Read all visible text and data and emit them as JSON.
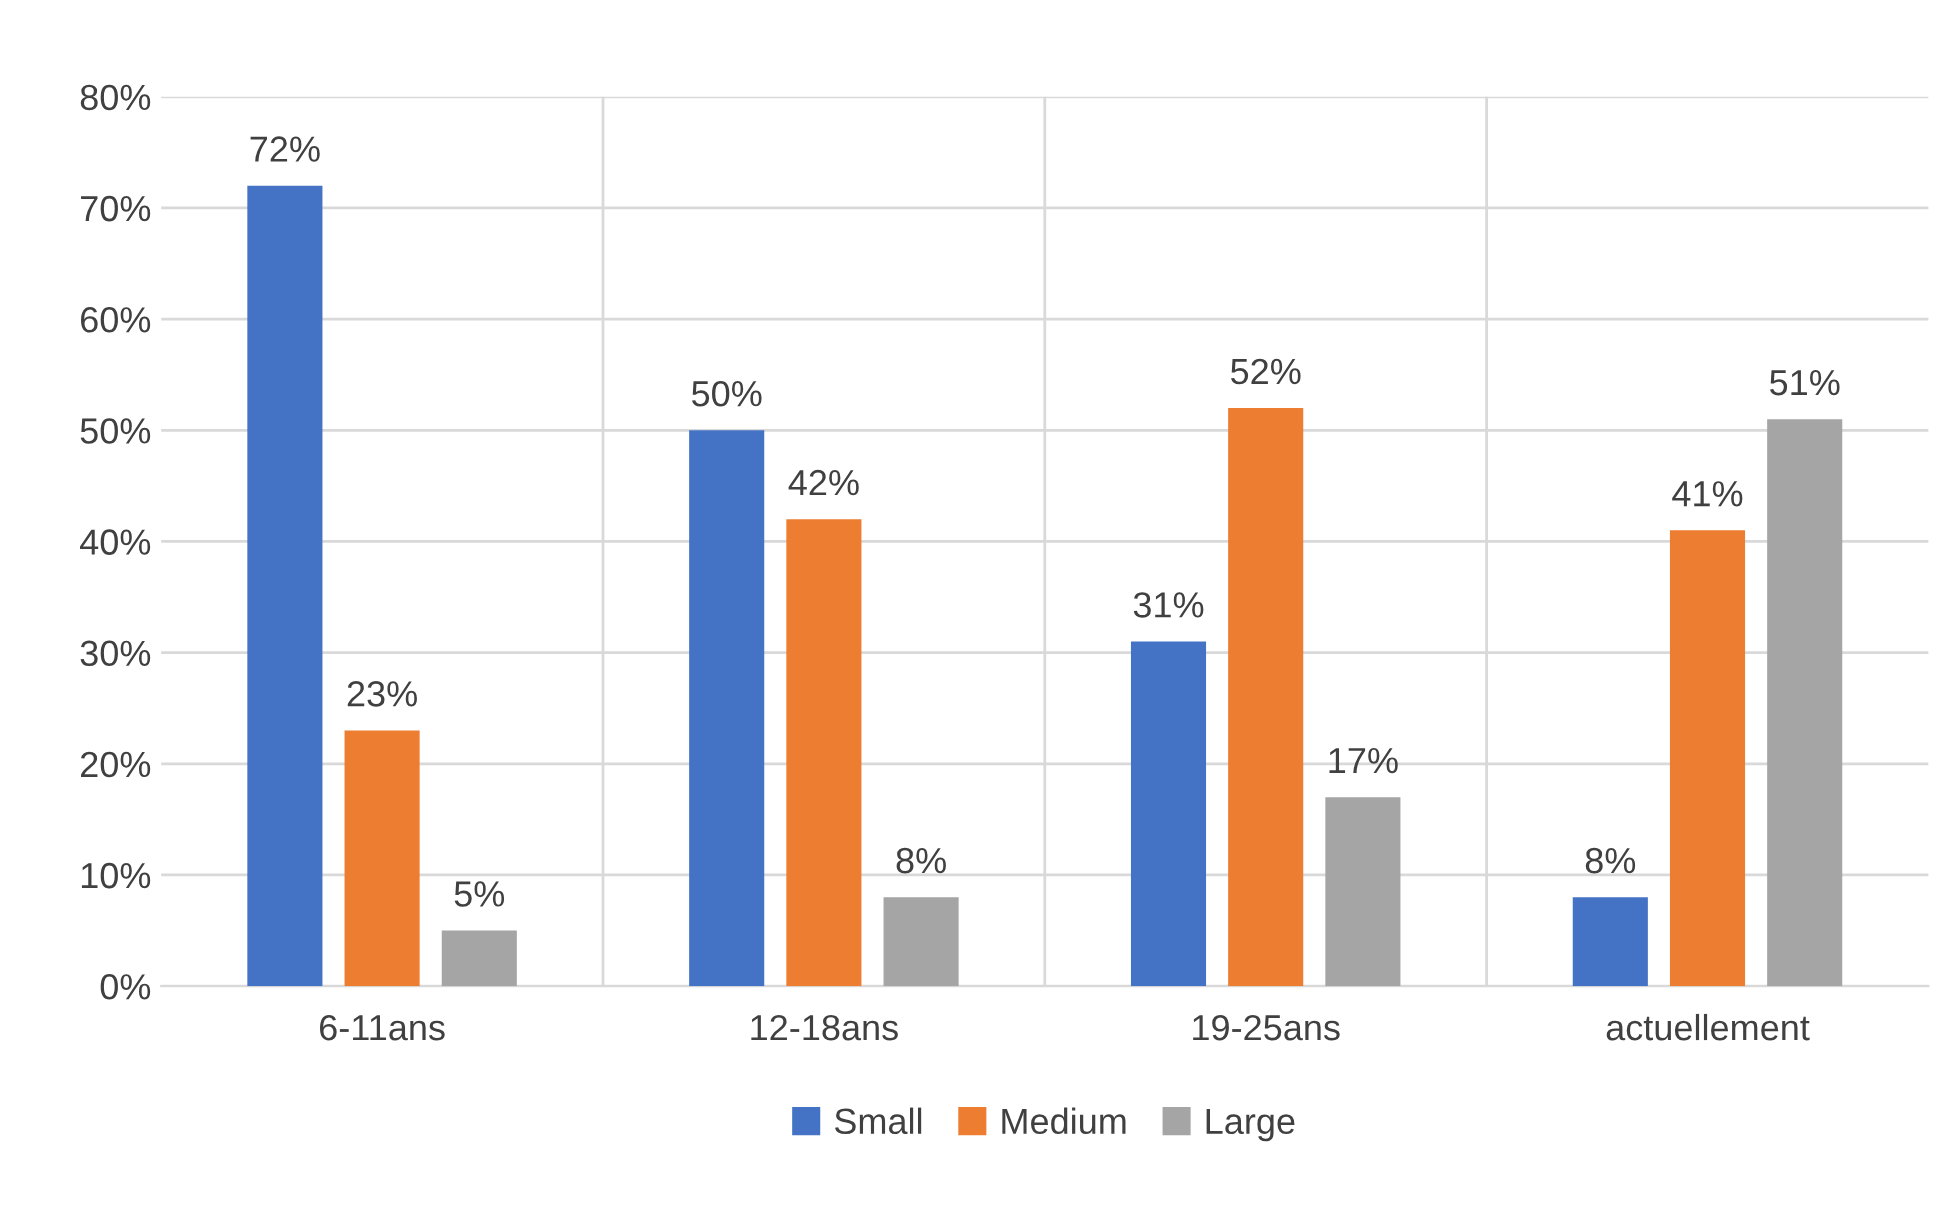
{
  "chart_data": {
    "type": "bar",
    "categories": [
      "6-11ans",
      "12-18ans",
      "19-25ans",
      "actuellement"
    ],
    "series": [
      {
        "name": "Small",
        "color": "#4472c4",
        "values": [
          72,
          50,
          31,
          8
        ]
      },
      {
        "name": "Medium",
        "color": "#ed7d31",
        "values": [
          23,
          42,
          52,
          41
        ]
      },
      {
        "name": "Large",
        "color": "#a5a5a5",
        "values": [
          5,
          8,
          17,
          51
        ]
      }
    ],
    "value_labels": [
      [
        "72%",
        "50%",
        "31%",
        "8%"
      ],
      [
        "23%",
        "42%",
        "52%",
        "41%"
      ],
      [
        "5%",
        "8%",
        "17%",
        "51%"
      ]
    ],
    "ylim": [
      0,
      80
    ],
    "yticks": [
      {
        "value": 0,
        "label": "0%"
      },
      {
        "value": 10,
        "label": "10%"
      },
      {
        "value": 20,
        "label": "20%"
      },
      {
        "value": 30,
        "label": "30%"
      },
      {
        "value": 40,
        "label": "40%"
      },
      {
        "value": 50,
        "label": "50%"
      },
      {
        "value": 60,
        "label": "60%"
      },
      {
        "value": 70,
        "label": "70%"
      },
      {
        "value": 80,
        "label": "80%"
      }
    ],
    "grid": true,
    "legend": "bottom"
  }
}
